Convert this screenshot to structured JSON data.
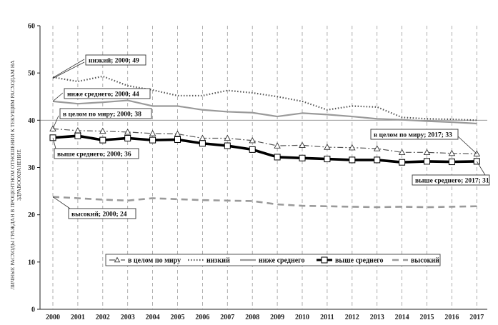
{
  "chart_data": {
    "type": "line",
    "ylabel_lines": [
      "ЛИЧНЫЕ РАСХОДЫ ГРАЖДАН В ПРОЦЕНТНОМ ОТНОШЕНИИ  К ТЕКУЩИМ РАСХОДАМ НА",
      "ЗДРАВООХРАНЕНИЕ"
    ],
    "xlabel": "",
    "ylim": [
      0,
      60
    ],
    "yticks": [
      0,
      10,
      20,
      30,
      40,
      50,
      60
    ],
    "x": [
      "2000",
      "2001",
      "2002",
      "2003",
      "2004",
      "2005",
      "2006",
      "2007",
      "2008",
      "2009",
      "2010",
      "2011",
      "2012",
      "2013",
      "2014",
      "2015",
      "2016",
      "2017"
    ],
    "grid": "vertical dashed, horizontal at 40",
    "legend_position": "bottom",
    "series": [
      {
        "key": "world",
        "name": "в целом по миру",
        "color": "#555555",
        "style": "dash-dot with triangle markers",
        "values": [
          38.2,
          37.8,
          37.7,
          37.5,
          37.2,
          37.1,
          36.2,
          36.2,
          35.7,
          34.6,
          34.7,
          34.3,
          34.2,
          34.0,
          33.2,
          33.2,
          33.0,
          32.9
        ]
      },
      {
        "key": "low",
        "name": "низкий",
        "color": "#555555",
        "style": "dotted",
        "values": [
          49.1,
          48.2,
          49.3,
          47.3,
          46.4,
          45.2,
          45.2,
          46.3,
          45.8,
          45.0,
          44.0,
          42.2,
          43.0,
          42.8,
          40.6,
          40.3,
          40.2,
          40.0
        ]
      },
      {
        "key": "lower_middle",
        "name": "ниже среднего",
        "color": "#999999",
        "style": "solid",
        "values": [
          44.0,
          43.5,
          43.8,
          44.2,
          43.0,
          43.0,
          42.2,
          41.8,
          41.6,
          40.8,
          41.5,
          41.2,
          40.8,
          40.3,
          40.1,
          39.8,
          39.6,
          39.3
        ]
      },
      {
        "key": "upper_middle",
        "name": "выше среднего",
        "color": "#000000",
        "style": "thick solid with square markers",
        "values": [
          36.3,
          36.7,
          35.8,
          36.2,
          35.8,
          35.9,
          35.1,
          34.6,
          33.8,
          32.2,
          32.0,
          31.8,
          31.6,
          31.6,
          31.1,
          31.3,
          31.2,
          31.3
        ]
      },
      {
        "key": "high",
        "name": "высокий",
        "color": "#999999",
        "style": "dashed",
        "values": [
          23.8,
          23.5,
          23.2,
          23.0,
          23.5,
          23.3,
          23.1,
          23.0,
          22.9,
          22.2,
          21.9,
          21.8,
          21.7,
          21.6,
          21.7,
          21.6,
          21.7,
          21.8
        ]
      }
    ],
    "annotations": [
      {
        "key": "a_low",
        "text": "низкий; 2000; 49"
      },
      {
        "key": "a_lower_middle",
        "text": "ниже среднего; 2000; 44"
      },
      {
        "key": "a_world_2000",
        "text": "в целом по миру; 2000; 38"
      },
      {
        "key": "a_upper_2000",
        "text": "выше среднего; 2000; 36"
      },
      {
        "key": "a_high",
        "text": "высокий; 2000; 24"
      },
      {
        "key": "a_world_2017",
        "text": "в целом по миру; 2017; 33"
      },
      {
        "key": "a_upper_2017",
        "text": "выше среднего; 2017; 31"
      }
    ]
  }
}
